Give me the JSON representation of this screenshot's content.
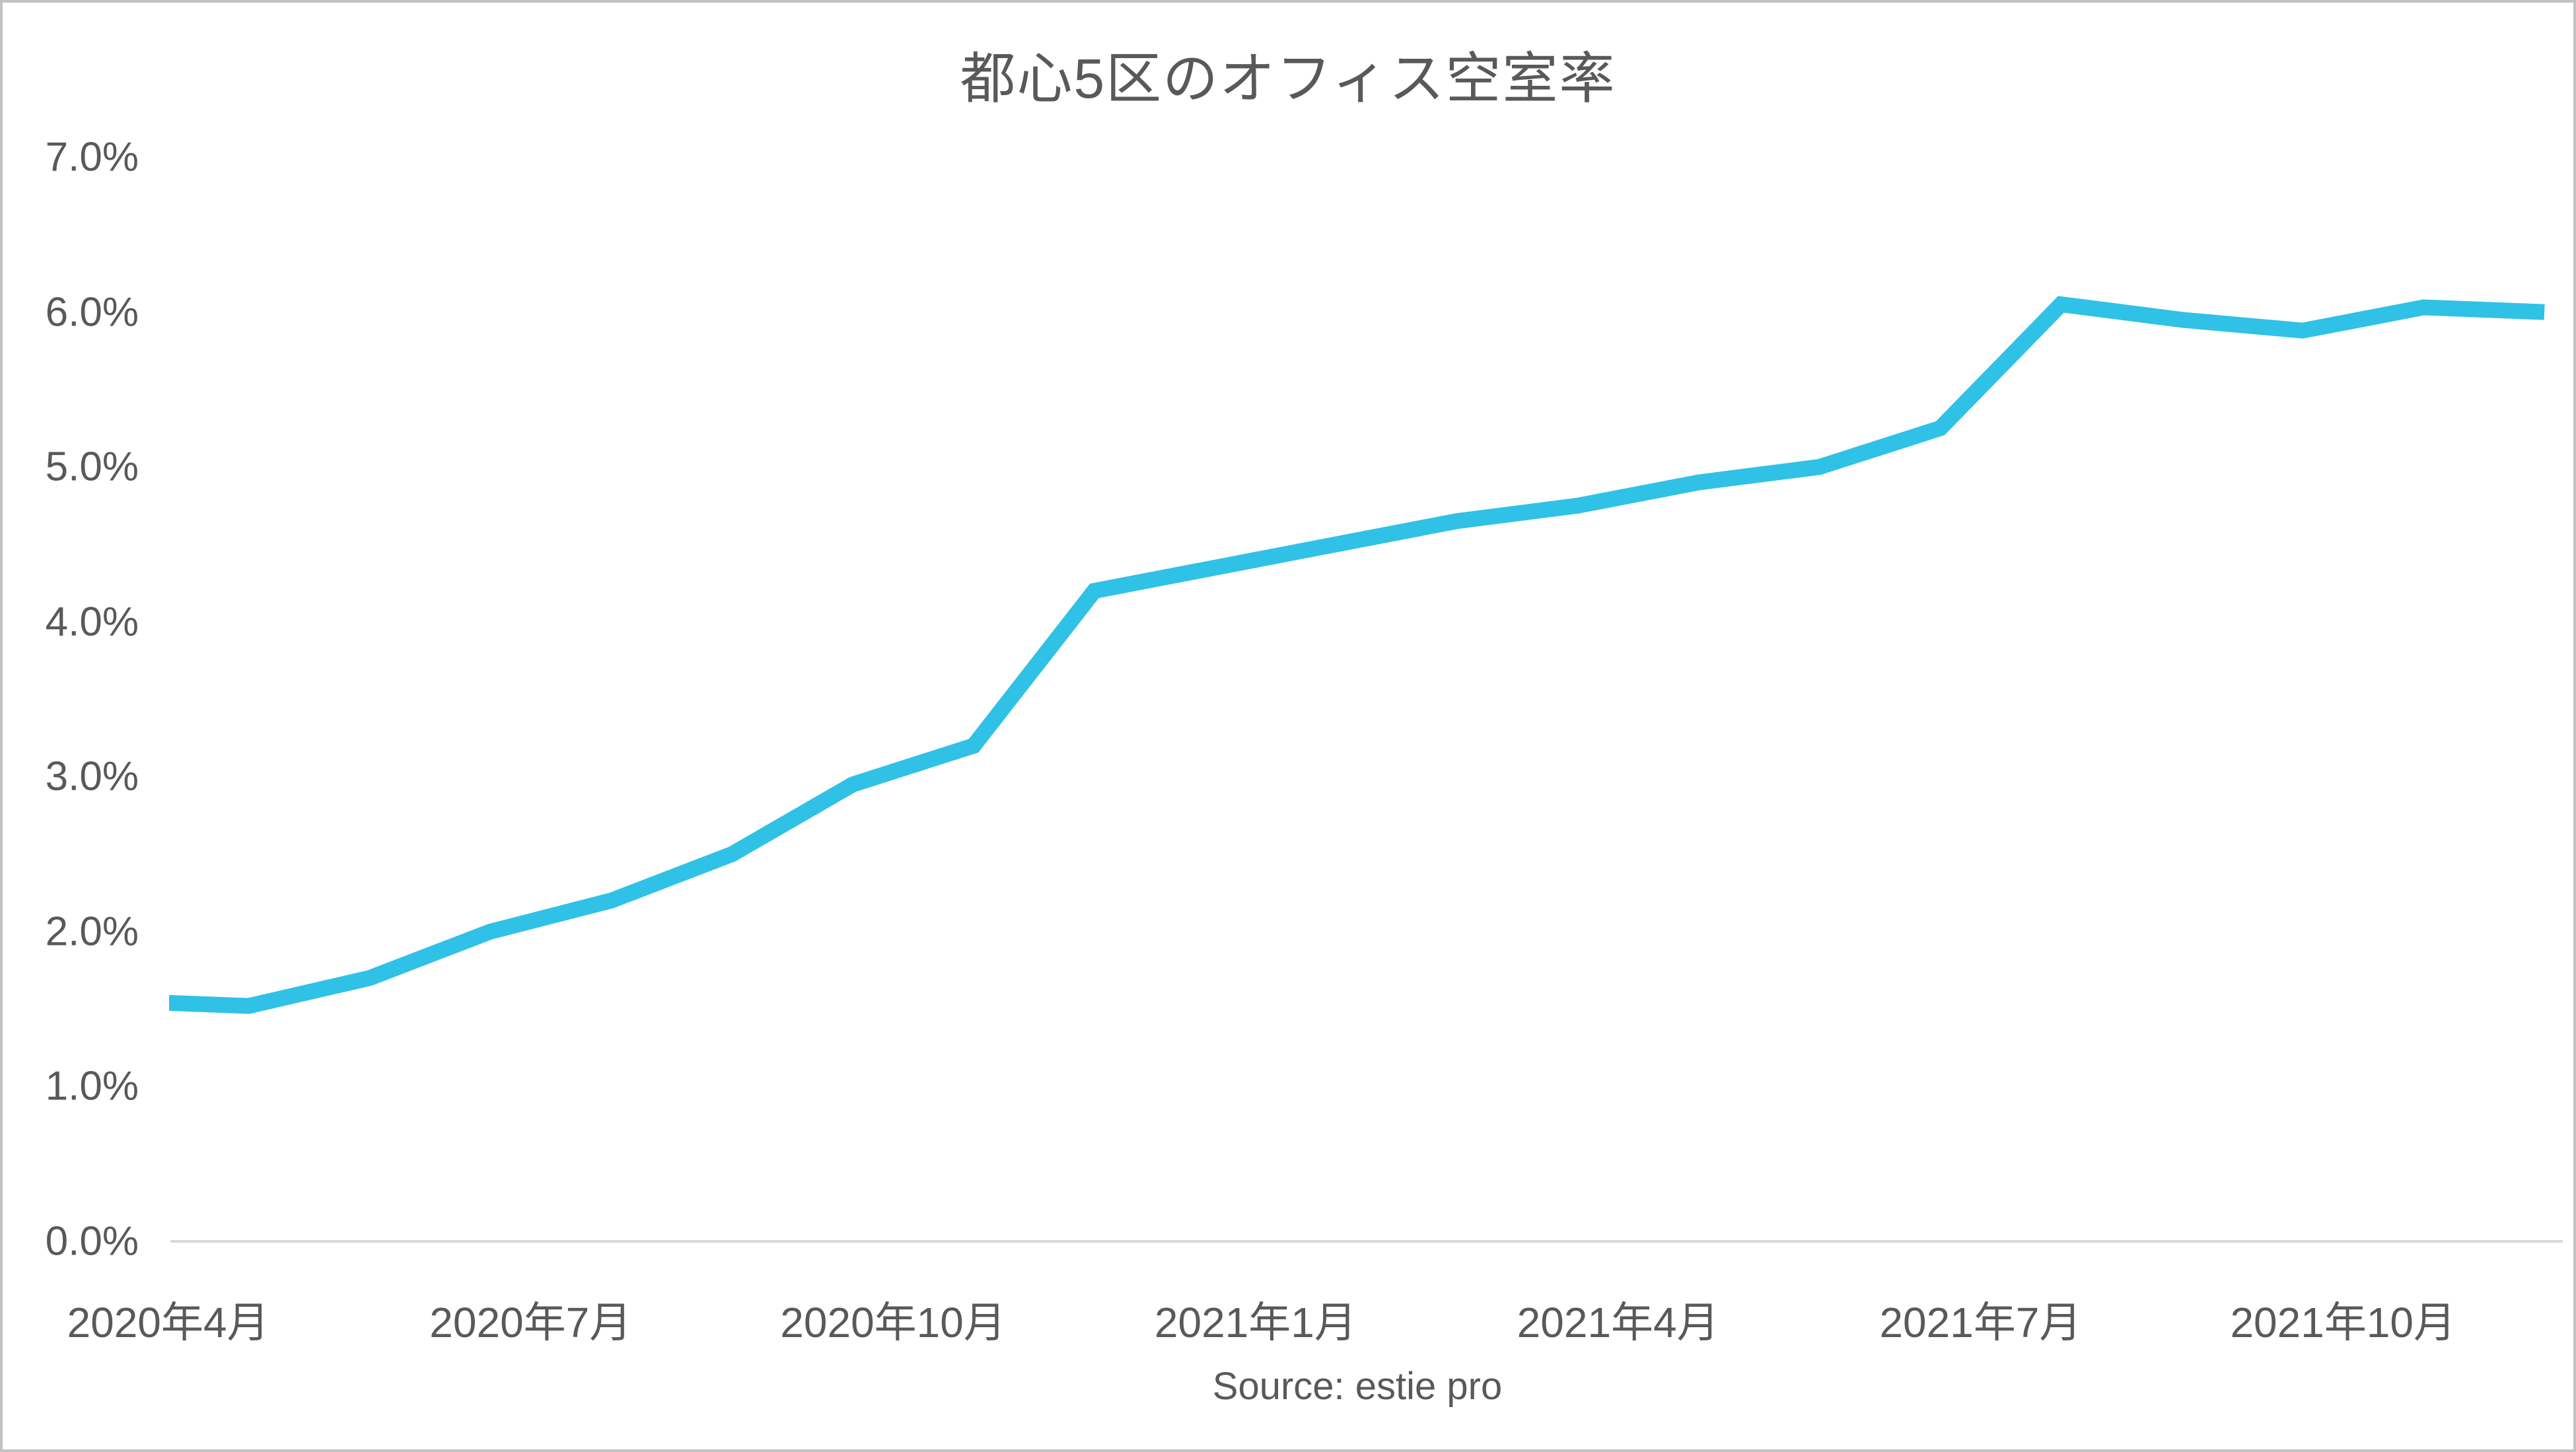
{
  "chart_data": {
    "type": "line",
    "title": "都心5区のオフィス空室率",
    "source_note": "Source: estie pro",
    "x": [
      "2020年4月",
      "2020年5月",
      "2020年6月",
      "2020年7月",
      "2020年8月",
      "2020年9月",
      "2020年10月",
      "2020年11月",
      "2020年12月",
      "2021年1月",
      "2021年2月",
      "2021年3月",
      "2021年4月",
      "2021年5月",
      "2021年6月",
      "2021年7月",
      "2021年8月",
      "2021年9月",
      "2021年10月",
      "2021年11月",
      "2021年12月"
    ],
    "values": [
      1.55,
      1.52,
      1.7,
      2.0,
      2.2,
      2.5,
      2.95,
      3.2,
      4.2,
      4.35,
      4.5,
      4.65,
      4.75,
      4.9,
      5.0,
      5.25,
      6.05,
      5.95,
      5.88,
      6.03,
      6.0
    ],
    "unit": "%",
    "ylim": [
      0.0,
      7.0
    ],
    "y_tick_labels": [
      "0.0%",
      "1.0%",
      "2.0%",
      "3.0%",
      "4.0%",
      "5.0%",
      "6.0%",
      "7.0%"
    ],
    "x_tick_labels": [
      "2020年4月",
      "2020年7月",
      "2020年10月",
      "2021年1月",
      "2021年4月",
      "2021年7月",
      "2021年10月"
    ],
    "x_tick_interval_months": 3,
    "grid": "baseline-only",
    "legend": "none",
    "line_color": "#30c1e6",
    "axis_color": "#d9d9d9",
    "text_color": "#595959"
  }
}
